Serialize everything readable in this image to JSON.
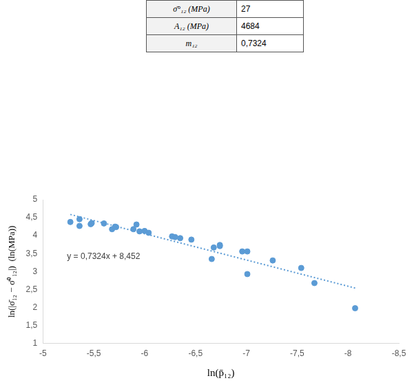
{
  "table": {
    "rows": [
      [
        "σ̄°₁₂ (MPa)",
        "27"
      ],
      [
        "A₁₂ (MPa)",
        "4684"
      ],
      [
        "m₁₂",
        "0,7324"
      ]
    ]
  },
  "chart_data": {
    "type": "scatter",
    "x_label": "ln(p̄₁₂)",
    "y_label": "ln(|σ̄₁₂ − σ̄⁰₁₂|)  (ln(MPa))",
    "annotation": "y = 0,7324x + 8,452",
    "series": [
      {
        "color": "#5b9bd5",
        "marker": "circle",
        "x": [
          -5.27,
          -5.36,
          -5.36,
          -5.47,
          -5.48,
          -5.6,
          -5.68,
          -5.71,
          -5.72,
          -5.89,
          -5.92,
          -5.95,
          -6.0,
          -6.04,
          -6.27,
          -6.3,
          -6.35,
          -6.46,
          -6.66,
          -6.68,
          -6.74,
          -6.74,
          -6.96,
          -7.01,
          -7.01,
          -7.26,
          -7.54,
          -7.67,
          -8.07
        ],
        "values": [
          4.38,
          4.46,
          4.27,
          4.32,
          4.35,
          4.34,
          4.18,
          4.25,
          4.24,
          4.18,
          4.31,
          4.12,
          4.13,
          4.08,
          3.98,
          3.96,
          3.93,
          3.89,
          3.35,
          3.67,
          3.74,
          3.71,
          3.56,
          3.56,
          2.93,
          3.31,
          3.1,
          2.68,
          1.98
        ]
      },
      {
        "type": "line",
        "line_style": "dotted",
        "color": "#5b9bd5",
        "x": [
          -5.27,
          -8.07
        ],
        "values": [
          4.59,
          2.54
        ]
      }
    ],
    "xlim": [
      -5,
      -8.5
    ],
    "xticks": [
      -5,
      {
        "value": -5.5,
        "label": "-5,5"
      },
      -6,
      {
        "value": -6.5,
        "label": "-6,5"
      },
      -7,
      {
        "value": -7.5,
        "label": "-7,5"
      },
      -8,
      {
        "value": -8.5,
        "label": "-8,5"
      }
    ],
    "ylim": [
      1,
      5
    ],
    "yticks": [
      1,
      {
        "value": 1.5,
        "label": "1,5"
      },
      2,
      {
        "value": 2.5,
        "label": "2,5"
      },
      3,
      {
        "value": 3.5,
        "label": "3,5"
      },
      4,
      {
        "value": 4.5,
        "label": "4,5"
      },
      5
    ],
    "grid": false
  }
}
